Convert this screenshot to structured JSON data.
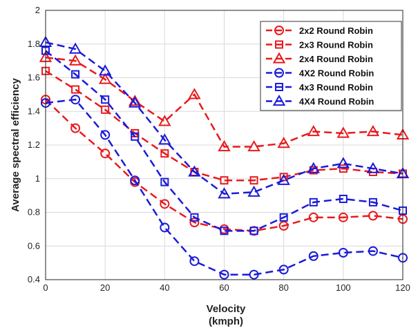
{
  "chart_data": {
    "type": "line",
    "title": "",
    "xlabel": "Velocity",
    "xlabel_unit": "(kmph)",
    "ylabel": "Average spectral efficiency",
    "xlim": [
      0,
      120
    ],
    "ylim": [
      0.4,
      2
    ],
    "xticks": [
      "0",
      "20",
      "40",
      "60",
      "80",
      "100",
      "120"
    ],
    "yticks": [
      "0.4",
      "0.6",
      "0.8",
      "1",
      "1.2",
      "1.4",
      "1.6",
      "1.8",
      "2"
    ],
    "grid": true,
    "legend_position": "top-right",
    "x": [
      0,
      10,
      20,
      30,
      40,
      50,
      60,
      70,
      80,
      90,
      100,
      110,
      120
    ],
    "series": [
      {
        "name": "2x2 Round Robin",
        "color": "#e8191c",
        "marker": "circle",
        "values": [
          1.47,
          1.3,
          1.15,
          0.98,
          0.85,
          0.74,
          0.7,
          0.69,
          0.72,
          0.77,
          0.77,
          0.78,
          0.76
        ]
      },
      {
        "name": "2x3 Round Robin",
        "color": "#e8191c",
        "marker": "square",
        "values": [
          1.64,
          1.53,
          1.41,
          1.27,
          1.15,
          1.04,
          0.99,
          0.99,
          1.01,
          1.05,
          1.06,
          1.04,
          1.03
        ]
      },
      {
        "name": "2x4 Round Robin",
        "color": "#e8191c",
        "marker": "triangle",
        "values": [
          1.72,
          1.7,
          1.59,
          1.46,
          1.34,
          1.5,
          1.19,
          1.19,
          1.21,
          1.28,
          1.27,
          1.28,
          1.26
        ]
      },
      {
        "name": "4X2 Round Robin",
        "color": "#1a1ad9",
        "marker": "circle",
        "values": [
          1.45,
          1.47,
          1.26,
          0.99,
          0.71,
          0.51,
          0.43,
          0.43,
          0.46,
          0.54,
          0.56,
          0.57,
          0.53
        ]
      },
      {
        "name": "4x3 Round Robin",
        "color": "#1a1ad9",
        "marker": "square",
        "values": [
          1.76,
          1.62,
          1.47,
          1.25,
          0.98,
          0.77,
          0.69,
          0.69,
          0.77,
          0.86,
          0.88,
          0.86,
          0.81
        ]
      },
      {
        "name": "4X4 Round Robin",
        "color": "#1a1ad9",
        "marker": "triangle",
        "values": [
          1.81,
          1.77,
          1.64,
          1.45,
          1.23,
          1.04,
          0.91,
          0.92,
          0.99,
          1.06,
          1.09,
          1.06,
          1.03
        ]
      }
    ]
  }
}
